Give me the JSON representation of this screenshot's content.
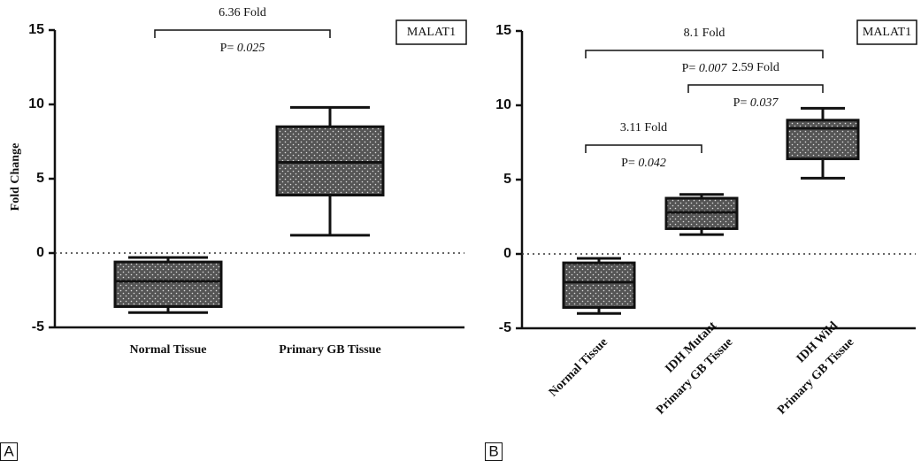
{
  "chart_data": [
    {
      "type": "box",
      "panel": "A",
      "label": "MALAT1",
      "y_label": "Fold Change",
      "categories": [
        "Normal Tissue",
        "Primary GB Tissue"
      ],
      "boxes": [
        {
          "low": -4.0,
          "q1": -3.6,
          "median": -1.9,
          "q3": -0.6,
          "high": -0.3
        },
        {
          "low": 1.2,
          "q1": 3.9,
          "median": 6.1,
          "q3": 8.5,
          "high": 9.8
        }
      ],
      "color": "#555555",
      "ylim": [
        -5,
        15
      ],
      "yticks": [
        -5,
        0,
        5,
        10,
        15
      ],
      "hline": 0,
      "annotations": [
        {
          "text": "6.36 Fold",
          "p_prefix": "P=",
          "p_value": "0.025",
          "from": 0,
          "to": 1
        }
      ]
    },
    {
      "type": "box",
      "panel": "B",
      "label": "MALAT1",
      "categories": [
        "Normal Tissue",
        "IDH Mutant\nPrimary GB Tissue",
        "IDH Wild\nPrimary GB Tissue"
      ],
      "boxes": [
        {
          "low": -4.0,
          "q1": -3.6,
          "median": -1.9,
          "q3": -0.6,
          "high": -0.3
        },
        {
          "low": 1.3,
          "q1": 1.7,
          "median": 2.8,
          "q3": 3.75,
          "high": 4.0
        },
        {
          "low": 5.1,
          "q1": 6.4,
          "median": 8.45,
          "q3": 9.0,
          "high": 9.8
        }
      ],
      "color": "#555555",
      "ylim": [
        -5,
        15
      ],
      "yticks": [
        -5,
        0,
        5,
        10,
        15
      ],
      "hline": 0,
      "annotations": [
        {
          "text": "8.1 Fold",
          "p_prefix": "P=",
          "p_value": "0.007",
          "from": 0,
          "to": 2
        },
        {
          "text": "2.59 Fold",
          "p_prefix": "P=",
          "p_value": "0.037",
          "from": 1,
          "to": 2
        },
        {
          "text": "3.11 Fold",
          "p_prefix": "P=",
          "p_value": "0.042",
          "from": 0,
          "to": 1
        }
      ]
    }
  ]
}
